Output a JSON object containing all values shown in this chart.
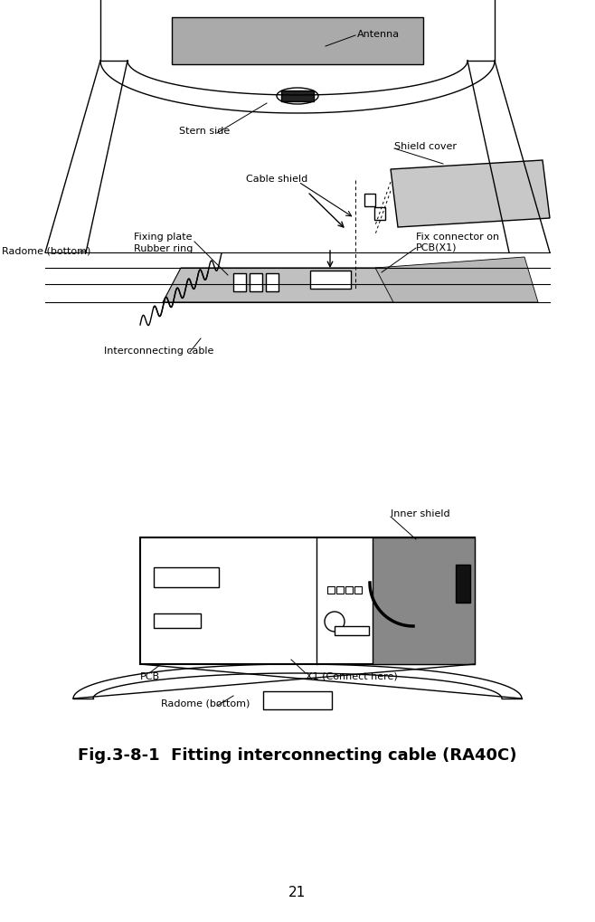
{
  "title": "Fig.3-8-1  Fitting interconnecting cable (RA40C)",
  "page_number": "21",
  "bg_color": "#ffffff",
  "fig_width": 6.58,
  "fig_height": 10.2,
  "dpi": 100,
  "label_antenna": "Antenna",
  "label_stern": "Stern side",
  "label_shield_cover": "Shield cover",
  "label_cable_shield": "Cable shield",
  "label_radome_top": "Radome (bottom)",
  "label_fixing_plate": "Fixing plate",
  "label_rubber_ring": "Rubber ring",
  "label_fix_connector": "Fix connector on\nPCB(X1)",
  "label_interconnecting": "Interconnecting cable",
  "label_inner_shield": "Inner shield",
  "label_x1": "X1 (Connect here)",
  "label_pcb": "PCB",
  "label_radome_bot": "Radome (bottom)",
  "title_fontsize": 13,
  "label_fontsize": 8,
  "page_fontsize": 11
}
